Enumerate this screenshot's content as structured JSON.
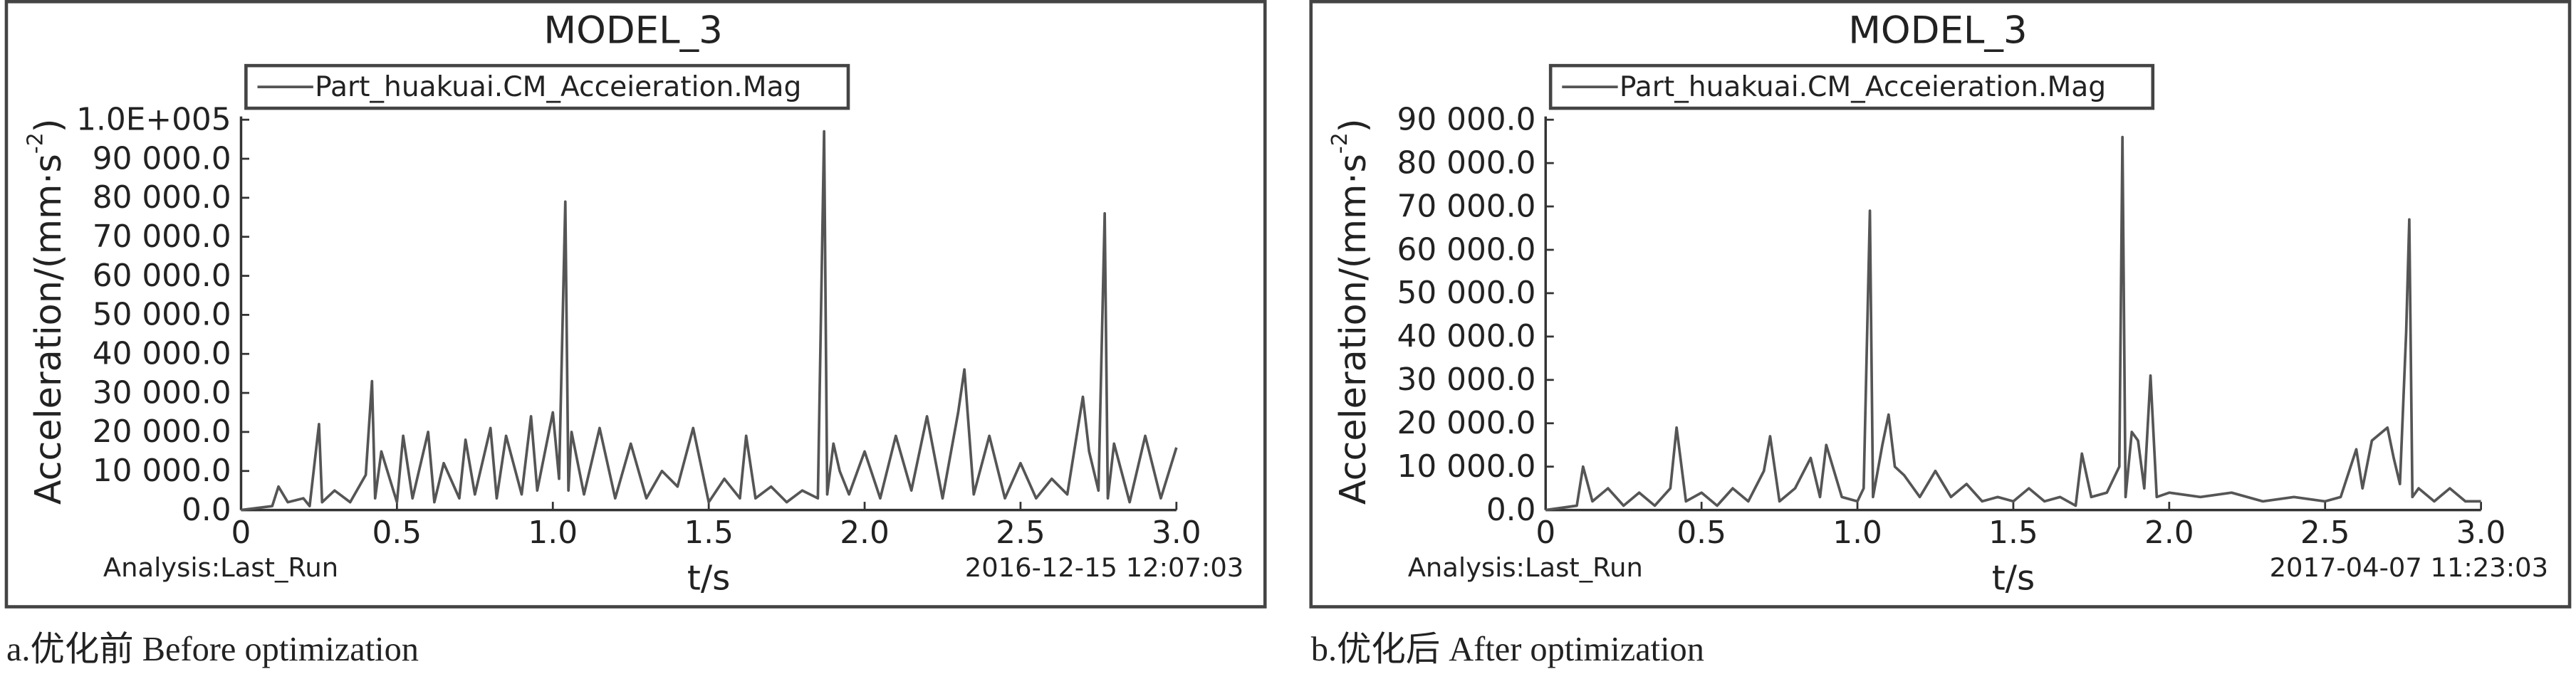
{
  "chart_data": [
    {
      "type": "line",
      "title": "MODEL_3",
      "xlabel": "t/s",
      "ylabel": "Acceleration/(mm·s",
      "ylabel_sup": "-2",
      "ylabel_end": ")",
      "analysis": "Analysis:Last_Run",
      "timestamp": "2016-12-15 12:07:03",
      "caption": "a.优化前 Before optimization",
      "xlim": [
        0,
        3
      ],
      "ylim": [
        0,
        100000
      ],
      "xticks": [
        {
          "value": 0,
          "label": "0"
        },
        0.5,
        {
          "value": 1,
          "label": "1.0"
        },
        1.5,
        {
          "value": 2,
          "label": "2.0"
        },
        2.5,
        {
          "value": 3,
          "label": "3.0"
        }
      ],
      "yticks": [
        {
          "value": 0,
          "label": "0.0"
        },
        {
          "value": 10000,
          "label": "10 000.0"
        },
        {
          "value": 20000,
          "label": "20 000.0"
        },
        {
          "value": 30000,
          "label": "30 000.0"
        },
        {
          "value": 40000,
          "label": "40 000.0"
        },
        {
          "value": 50000,
          "label": "50 000.0"
        },
        {
          "value": 60000,
          "label": "60 000.0"
        },
        {
          "value": 70000,
          "label": "70 000.0"
        },
        {
          "value": 80000,
          "label": "80 000.0"
        },
        {
          "value": 90000,
          "label": "90 000.0"
        },
        {
          "value": 100000,
          "label": "1.0E+005"
        }
      ],
      "x": [
        0,
        0.1,
        0.12,
        0.15,
        0.2,
        0.22,
        0.25,
        0.26,
        0.3,
        0.35,
        0.4,
        0.42,
        0.43,
        0.45,
        0.5,
        0.52,
        0.55,
        0.6,
        0.62,
        0.65,
        0.7,
        0.72,
        0.75,
        0.8,
        0.82,
        0.85,
        0.9,
        0.93,
        0.95,
        1.0,
        1.02,
        1.04,
        1.05,
        1.06,
        1.1,
        1.15,
        1.2,
        1.25,
        1.3,
        1.35,
        1.4,
        1.45,
        1.5,
        1.55,
        1.6,
        1.62,
        1.65,
        1.7,
        1.75,
        1.8,
        1.85,
        1.87,
        1.88,
        1.9,
        1.92,
        1.95,
        2.0,
        2.05,
        2.1,
        2.15,
        2.2,
        2.25,
        2.3,
        2.32,
        2.35,
        2.4,
        2.45,
        2.5,
        2.55,
        2.6,
        2.65,
        2.7,
        2.72,
        2.75,
        2.77,
        2.78,
        2.8,
        2.85,
        2.9,
        2.95,
        3.0
      ],
      "series": [
        {
          "name": "Part_huakuai.CM_Acceieration.Mag",
          "color": "#555555",
          "values": [
            0,
            1000,
            6000,
            2000,
            3000,
            1000,
            22000,
            2000,
            5000,
            2000,
            9000,
            33000,
            3000,
            15000,
            2000,
            19000,
            3000,
            20000,
            2000,
            12000,
            3000,
            18000,
            4000,
            21000,
            3000,
            19000,
            4000,
            24000,
            5000,
            25000,
            8000,
            79000,
            5000,
            20000,
            4000,
            21000,
            3000,
            17000,
            3000,
            10000,
            6000,
            21000,
            2000,
            8000,
            3000,
            19000,
            3000,
            6000,
            2000,
            5000,
            3000,
            97000,
            4000,
            17000,
            10000,
            4000,
            15000,
            3000,
            19000,
            5000,
            24000,
            3000,
            25000,
            36000,
            4000,
            19000,
            3000,
            12000,
            3000,
            8000,
            4000,
            29000,
            15000,
            5000,
            76000,
            3000,
            17000,
            2000,
            19000,
            3000,
            16000
          ]
        }
      ]
    },
    {
      "type": "line",
      "title": "MODEL_3",
      "xlabel": "t/s",
      "ylabel": "Acceleration/(mm·s",
      "ylabel_sup": "-2",
      "ylabel_end": ")",
      "analysis": "Analysis:Last_Run",
      "timestamp": "2017-04-07 11:23:03",
      "caption": "b.优化后 After optimization",
      "xlim": [
        0,
        3
      ],
      "ylim": [
        0,
        90000
      ],
      "xticks": [
        {
          "value": 0,
          "label": "0"
        },
        0.5,
        {
          "value": 1,
          "label": "1.0"
        },
        1.5,
        {
          "value": 2,
          "label": "2.0"
        },
        2.5,
        {
          "value": 3,
          "label": "3.0"
        }
      ],
      "yticks": [
        {
          "value": 0,
          "label": "0.0"
        },
        {
          "value": 10000,
          "label": "10 000.0"
        },
        {
          "value": 20000,
          "label": "20 000.0"
        },
        {
          "value": 30000,
          "label": "30 000.0"
        },
        {
          "value": 40000,
          "label": "40 000.0"
        },
        {
          "value": 50000,
          "label": "50 000.0"
        },
        {
          "value": 60000,
          "label": "60 000.0"
        },
        {
          "value": 70000,
          "label": "70 000.0"
        },
        {
          "value": 80000,
          "label": "80 000.0"
        },
        {
          "value": 90000,
          "label": "90 000.0"
        }
      ],
      "x": [
        0,
        0.1,
        0.12,
        0.15,
        0.2,
        0.25,
        0.3,
        0.35,
        0.4,
        0.42,
        0.45,
        0.5,
        0.55,
        0.6,
        0.65,
        0.7,
        0.72,
        0.75,
        0.8,
        0.85,
        0.88,
        0.9,
        0.95,
        1.0,
        1.02,
        1.04,
        1.05,
        1.08,
        1.1,
        1.12,
        1.15,
        1.2,
        1.25,
        1.3,
        1.35,
        1.4,
        1.45,
        1.5,
        1.55,
        1.6,
        1.65,
        1.7,
        1.72,
        1.75,
        1.8,
        1.84,
        1.85,
        1.86,
        1.88,
        1.9,
        1.92,
        1.94,
        1.96,
        2.0,
        2.1,
        2.2,
        2.3,
        2.4,
        2.5,
        2.55,
        2.6,
        2.62,
        2.65,
        2.7,
        2.72,
        2.74,
        2.76,
        2.77,
        2.78,
        2.8,
        2.85,
        2.9,
        2.95,
        3.0
      ],
      "series": [
        {
          "name": "Part_huakuai.CM_Acceieration.Mag",
          "color": "#555555",
          "values": [
            0,
            1000,
            10000,
            2000,
            5000,
            1000,
            4000,
            1000,
            5000,
            19000,
            2000,
            4000,
            1000,
            5000,
            2000,
            9000,
            17000,
            2000,
            5000,
            12000,
            3000,
            15000,
            3000,
            2000,
            5000,
            69000,
            3000,
            15000,
            22000,
            10000,
            8000,
            3000,
            9000,
            3000,
            6000,
            2000,
            3000,
            2000,
            5000,
            2000,
            3000,
            1000,
            13000,
            3000,
            4000,
            10000,
            86000,
            3000,
            18000,
            16000,
            5000,
            31000,
            3000,
            4000,
            3000,
            4000,
            2000,
            3000,
            2000,
            3000,
            14000,
            5000,
            16000,
            19000,
            12000,
            6000,
            41000,
            67000,
            3000,
            5000,
            2000,
            5000,
            2000,
            2000
          ]
        }
      ]
    }
  ]
}
